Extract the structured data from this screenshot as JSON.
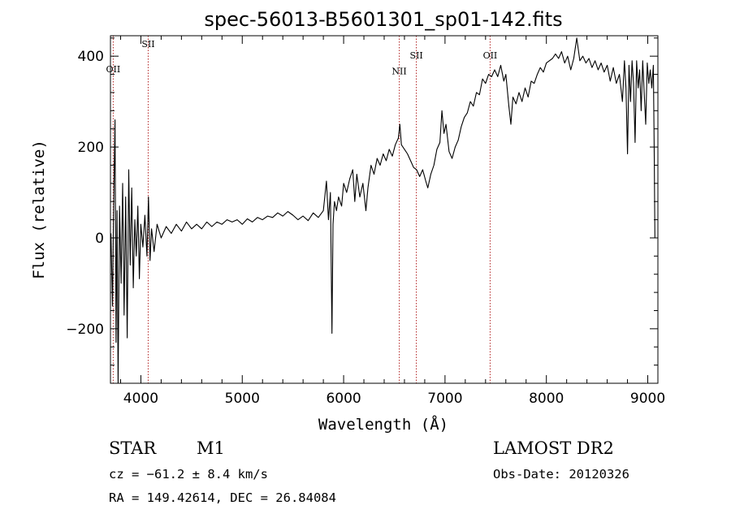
{
  "chart_data": {
    "type": "line",
    "title": "spec-56013-B5601301_sp01-142.fits",
    "xlabel": "Wavelength (Å)",
    "ylabel": "Flux (relative)",
    "xlim": [
      3700,
      9100
    ],
    "ylim": [
      -320,
      445
    ],
    "x_ticks": [
      4000,
      5000,
      6000,
      7000,
      8000,
      9000
    ],
    "x_tick_labels": [
      "4000",
      "5000",
      "6000",
      "7000",
      "8000",
      "9000"
    ],
    "y_ticks": [
      -200,
      0,
      200,
      400
    ],
    "y_tick_labels": [
      "−200",
      "0",
      "200",
      "400"
    ],
    "grid": false,
    "emission_lines": [
      {
        "label": "OII",
        "wavelength": 3727,
        "label_flux": 365
      },
      {
        "label": "SII",
        "wavelength": 4072,
        "label_flux": 420
      },
      {
        "label": "NII",
        "wavelength": 6549,
        "label_flux": 360
      },
      {
        "label": "SII",
        "wavelength": 6717,
        "label_flux": 395
      },
      {
        "label": "OII",
        "wavelength": 7445,
        "label_flux": 395
      }
    ],
    "series": [
      {
        "points": [
          [
            3705,
            10
          ],
          [
            3720,
            -150
          ],
          [
            3730,
            40
          ],
          [
            3745,
            260
          ],
          [
            3755,
            -230
          ],
          [
            3765,
            60
          ],
          [
            3775,
            -320
          ],
          [
            3790,
            70
          ],
          [
            3805,
            -100
          ],
          [
            3820,
            120
          ],
          [
            3835,
            -170
          ],
          [
            3850,
            90
          ],
          [
            3865,
            -220
          ],
          [
            3880,
            150
          ],
          [
            3895,
            -60
          ],
          [
            3910,
            110
          ],
          [
            3925,
            -110
          ],
          [
            3940,
            40
          ],
          [
            3955,
            -40
          ],
          [
            3970,
            70
          ],
          [
            3985,
            -90
          ],
          [
            4000,
            30
          ],
          [
            4020,
            -20
          ],
          [
            4040,
            50
          ],
          [
            4060,
            -40
          ],
          [
            4075,
            90
          ],
          [
            4090,
            -50
          ],
          [
            4105,
            20
          ],
          [
            4130,
            -30
          ],
          [
            4160,
            30
          ],
          [
            4200,
            0
          ],
          [
            4250,
            25
          ],
          [
            4300,
            10
          ],
          [
            4350,
            30
          ],
          [
            4400,
            15
          ],
          [
            4450,
            35
          ],
          [
            4500,
            20
          ],
          [
            4550,
            30
          ],
          [
            4600,
            20
          ],
          [
            4650,
            35
          ],
          [
            4700,
            25
          ],
          [
            4750,
            35
          ],
          [
            4800,
            30
          ],
          [
            4850,
            40
          ],
          [
            4900,
            35
          ],
          [
            4950,
            40
          ],
          [
            5000,
            30
          ],
          [
            5050,
            42
          ],
          [
            5100,
            35
          ],
          [
            5150,
            45
          ],
          [
            5200,
            40
          ],
          [
            5250,
            48
          ],
          [
            5300,
            45
          ],
          [
            5350,
            55
          ],
          [
            5400,
            48
          ],
          [
            5450,
            58
          ],
          [
            5500,
            50
          ],
          [
            5550,
            40
          ],
          [
            5600,
            48
          ],
          [
            5650,
            38
          ],
          [
            5700,
            55
          ],
          [
            5750,
            45
          ],
          [
            5800,
            60
          ],
          [
            5830,
            125
          ],
          [
            5850,
            40
          ],
          [
            5870,
            100
          ],
          [
            5885,
            -210
          ],
          [
            5895,
            30
          ],
          [
            5910,
            80
          ],
          [
            5930,
            60
          ],
          [
            5950,
            90
          ],
          [
            5980,
            70
          ],
          [
            6000,
            120
          ],
          [
            6030,
            100
          ],
          [
            6060,
            130
          ],
          [
            6090,
            150
          ],
          [
            6110,
            80
          ],
          [
            6130,
            140
          ],
          [
            6160,
            90
          ],
          [
            6190,
            120
          ],
          [
            6220,
            60
          ],
          [
            6240,
            110
          ],
          [
            6270,
            160
          ],
          [
            6300,
            140
          ],
          [
            6330,
            175
          ],
          [
            6360,
            160
          ],
          [
            6390,
            185
          ],
          [
            6420,
            170
          ],
          [
            6450,
            195
          ],
          [
            6480,
            180
          ],
          [
            6510,
            205
          ],
          [
            6540,
            220
          ],
          [
            6555,
            250
          ],
          [
            6570,
            205
          ],
          [
            6600,
            195
          ],
          [
            6630,
            185
          ],
          [
            6660,
            170
          ],
          [
            6690,
            155
          ],
          [
            6720,
            150
          ],
          [
            6750,
            135
          ],
          [
            6780,
            150
          ],
          [
            6810,
            125
          ],
          [
            6830,
            110
          ],
          [
            6860,
            140
          ],
          [
            6890,
            160
          ],
          [
            6920,
            195
          ],
          [
            6950,
            210
          ],
          [
            6970,
            280
          ],
          [
            6990,
            230
          ],
          [
            7010,
            250
          ],
          [
            7040,
            190
          ],
          [
            7070,
            175
          ],
          [
            7100,
            200
          ],
          [
            7130,
            215
          ],
          [
            7160,
            245
          ],
          [
            7190,
            265
          ],
          [
            7220,
            275
          ],
          [
            7250,
            300
          ],
          [
            7280,
            290
          ],
          [
            7310,
            320
          ],
          [
            7340,
            315
          ],
          [
            7370,
            350
          ],
          [
            7400,
            340
          ],
          [
            7430,
            360
          ],
          [
            7460,
            355
          ],
          [
            7490,
            370
          ],
          [
            7520,
            355
          ],
          [
            7550,
            380
          ],
          [
            7580,
            345
          ],
          [
            7600,
            360
          ],
          [
            7630,
            290
          ],
          [
            7650,
            250
          ],
          [
            7670,
            310
          ],
          [
            7700,
            295
          ],
          [
            7730,
            320
          ],
          [
            7760,
            300
          ],
          [
            7790,
            330
          ],
          [
            7820,
            310
          ],
          [
            7850,
            345
          ],
          [
            7880,
            340
          ],
          [
            7910,
            360
          ],
          [
            7940,
            375
          ],
          [
            7970,
            365
          ],
          [
            8000,
            385
          ],
          [
            8030,
            390
          ],
          [
            8060,
            395
          ],
          [
            8090,
            405
          ],
          [
            8120,
            395
          ],
          [
            8150,
            410
          ],
          [
            8180,
            385
          ],
          [
            8210,
            400
          ],
          [
            8240,
            370
          ],
          [
            8270,
            395
          ],
          [
            8300,
            440
          ],
          [
            8330,
            390
          ],
          [
            8360,
            400
          ],
          [
            8390,
            385
          ],
          [
            8420,
            395
          ],
          [
            8450,
            375
          ],
          [
            8480,
            390
          ],
          [
            8510,
            370
          ],
          [
            8540,
            385
          ],
          [
            8570,
            365
          ],
          [
            8600,
            380
          ],
          [
            8630,
            345
          ],
          [
            8660,
            375
          ],
          [
            8690,
            340
          ],
          [
            8720,
            360
          ],
          [
            8750,
            300
          ],
          [
            8770,
            390
          ],
          [
            8785,
            330
          ],
          [
            8800,
            185
          ],
          [
            8815,
            380
          ],
          [
            8830,
            300
          ],
          [
            8845,
            390
          ],
          [
            8860,
            340
          ],
          [
            8875,
            210
          ],
          [
            8890,
            390
          ],
          [
            8905,
            330
          ],
          [
            8920,
            370
          ],
          [
            8935,
            280
          ],
          [
            8950,
            390
          ],
          [
            8965,
            320
          ],
          [
            8980,
            250
          ],
          [
            8995,
            385
          ],
          [
            9010,
            340
          ],
          [
            9025,
            370
          ],
          [
            9040,
            330
          ],
          [
            9055,
            380
          ],
          [
            9065,
            165
          ],
          [
            9070,
            0
          ]
        ]
      }
    ]
  },
  "info": {
    "object_type": "STAR",
    "subclass": "M1",
    "survey": "LAMOST DR2",
    "redshift": "cz = −61.2 ± 8.4 km/s",
    "obs_date": "Obs-Date: 20120326",
    "coords": "RA = 149.42614, DEC =  26.84084"
  }
}
